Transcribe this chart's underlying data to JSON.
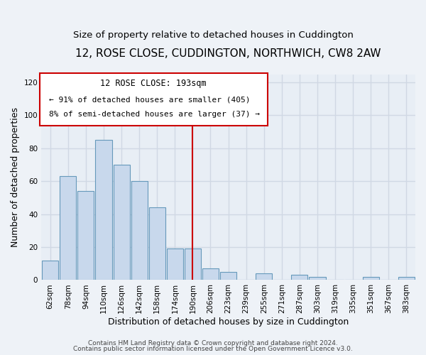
{
  "title": "12, ROSE CLOSE, CUDDINGTON, NORTHWICH, CW8 2AW",
  "subtitle": "Size of property relative to detached houses in Cuddington",
  "xlabel": "Distribution of detached houses by size in Cuddington",
  "ylabel": "Number of detached properties",
  "bar_labels": [
    "62sqm",
    "78sqm",
    "94sqm",
    "110sqm",
    "126sqm",
    "142sqm",
    "158sqm",
    "174sqm",
    "190sqm",
    "206sqm",
    "223sqm",
    "239sqm",
    "255sqm",
    "271sqm",
    "287sqm",
    "303sqm",
    "319sqm",
    "335sqm",
    "351sqm",
    "367sqm",
    "383sqm"
  ],
  "bar_values": [
    12,
    63,
    54,
    85,
    70,
    60,
    44,
    19,
    19,
    7,
    5,
    0,
    4,
    0,
    3,
    2,
    0,
    0,
    2,
    0,
    2
  ],
  "bar_color": "#c8d8ec",
  "bar_edgecolor": "#6699bb",
  "vline_x": 8,
  "vline_color": "#cc0000",
  "annotation_line1": "12 ROSE CLOSE: 193sqm",
  "annotation_line2": "← 91% of detached houses are smaller (405)",
  "annotation_line3": "8% of semi-detached houses are larger (37) →",
  "annotation_box_color": "#ffffff",
  "annotation_border_color": "#cc0000",
  "ylim": [
    0,
    125
  ],
  "yticks": [
    0,
    20,
    40,
    60,
    80,
    100,
    120
  ],
  "footer1": "Contains HM Land Registry data © Crown copyright and database right 2024.",
  "footer2": "Contains public sector information licensed under the Open Government Licence v3.0.",
  "bg_color": "#eef2f7",
  "plot_bg_color": "#e8eef5",
  "grid_color": "#d0d8e4",
  "title_fontsize": 11,
  "subtitle_fontsize": 9.5,
  "label_fontsize": 9,
  "tick_fontsize": 7.5,
  "footer_fontsize": 6.5
}
